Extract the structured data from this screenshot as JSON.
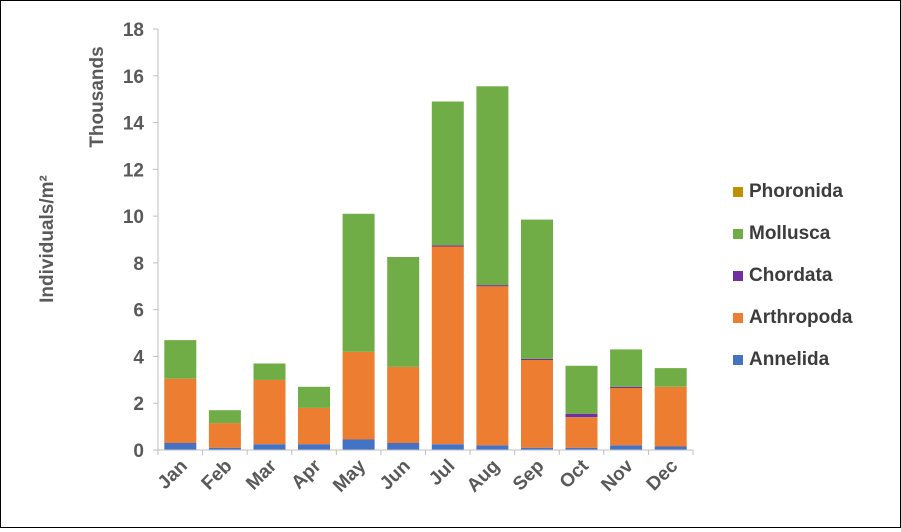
{
  "chart_data": {
    "type": "bar",
    "stacked": true,
    "categories": [
      "Jan",
      "Feb",
      "Mar",
      "Apr",
      "May",
      "Jun",
      "Jul",
      "Aug",
      "Sep",
      "Oct",
      "Nov",
      "Dec"
    ],
    "ylabel": "Individuals/m²",
    "yunit_label": "Thousands",
    "ylim": [
      0,
      18
    ],
    "yticks": [
      "0",
      "2",
      "4",
      "6",
      "8",
      "10",
      "12",
      "14",
      "16",
      "18"
    ],
    "ytick_values": [
      0,
      2,
      4,
      6,
      8,
      10,
      12,
      14,
      16,
      18
    ],
    "grid": false,
    "legend_position": "right",
    "series": [
      {
        "name": "Annelida",
        "color": "#4472c4",
        "values": [
          0.3,
          0.1,
          0.25,
          0.25,
          0.45,
          0.3,
          0.25,
          0.2,
          0.1,
          0.1,
          0.2,
          0.15
        ]
      },
      {
        "name": "Arthropoda",
        "color": "#ed7d31",
        "values": [
          2.75,
          1.05,
          2.75,
          1.55,
          3.75,
          3.25,
          8.45,
          6.8,
          3.75,
          1.3,
          2.45,
          2.55
        ]
      },
      {
        "name": "Chordata",
        "color": "#7030a0",
        "values": [
          0.0,
          0.0,
          0.0,
          0.0,
          0.0,
          0.0,
          0.05,
          0.05,
          0.05,
          0.15,
          0.05,
          0.0
        ]
      },
      {
        "name": "Mollusca",
        "color": "#70ad47",
        "values": [
          1.65,
          0.55,
          0.7,
          0.9,
          5.9,
          4.7,
          6.15,
          8.5,
          5.95,
          2.05,
          1.6,
          0.8
        ]
      },
      {
        "name": "Phoronida",
        "color": "#bf9000",
        "values": [
          0.0,
          0.0,
          0.0,
          0.0,
          0.0,
          0.0,
          0.0,
          0.0,
          0.0,
          0.0,
          0.0,
          0.0
        ]
      }
    ],
    "legend_order": [
      "Phoronida",
      "Mollusca",
      "Chordata",
      "Arthropoda",
      "Annelida"
    ]
  }
}
